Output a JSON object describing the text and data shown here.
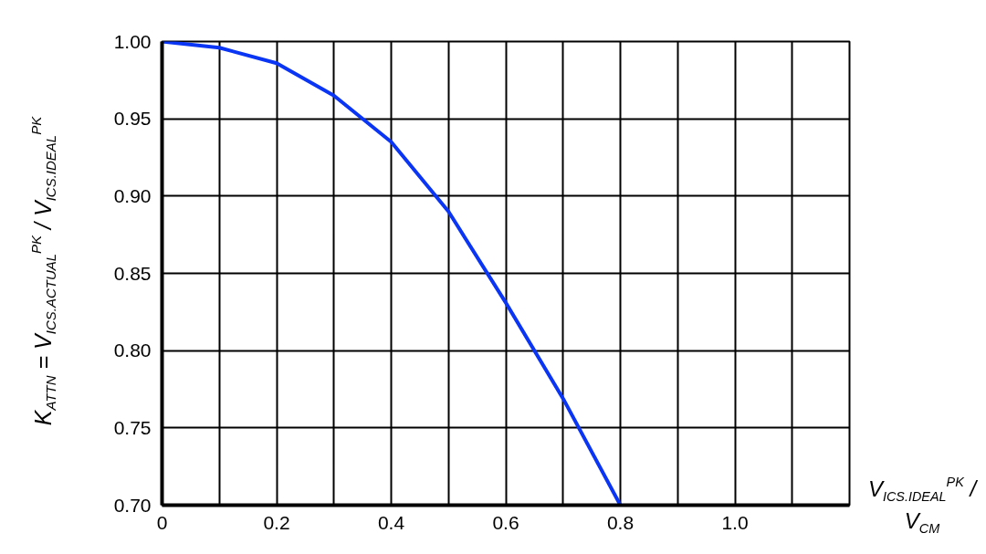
{
  "chart_data": {
    "type": "line",
    "xlabel": "V$_{ICS.IDEAL}$$^{PK}$ / V$_{CM}$",
    "ylabel": "K$_{ATTN}$ = V$_{ICS.ACTUAL}$$^{PK}$ / V$_{ICS.IDEAL}$$^{PK}$",
    "x": [
      0,
      0.1,
      0.2,
      0.3,
      0.4,
      0.5,
      0.6,
      0.7,
      0.8
    ],
    "series": [
      {
        "color": "#0a35f5",
        "values": [
          1.0,
          0.996,
          0.986,
          0.965,
          0.935,
          0.89,
          0.831,
          0.769,
          0.7
        ]
      }
    ],
    "xlim": [
      0,
      1.2
    ],
    "ylim": [
      0.7,
      1.0
    ],
    "xticks": [
      0,
      {
        "value": 0.1,
        "label": null
      },
      0.2,
      {
        "value": 0.3,
        "label": null
      },
      0.4,
      {
        "value": 0.5,
        "label": null
      },
      0.6,
      {
        "value": 0.7,
        "label": null
      },
      0.8,
      {
        "value": 0.9,
        "label": null
      },
      {
        "value": 1.0,
        "label": "1.0"
      },
      {
        "value": 1.1,
        "label": null
      }
    ],
    "yticks": [
      {
        "value": 0.7,
        "label": "0.70"
      },
      0.75,
      {
        "value": 0.8,
        "label": "0.80"
      },
      0.85,
      {
        "value": 0.9,
        "label": "0.90"
      },
      0.95,
      {
        "value": 1.0,
        "label": "1.00"
      }
    ],
    "grid": true
  }
}
